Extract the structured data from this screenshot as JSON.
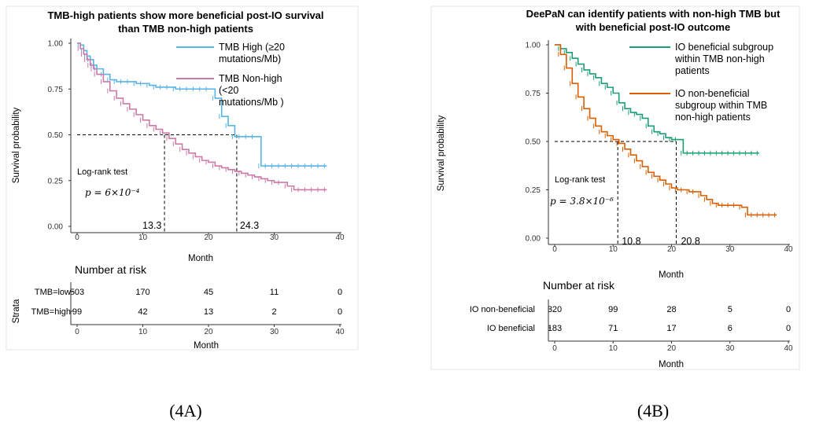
{
  "chart_data": [
    {
      "type": "line",
      "subtype": "kaplan-meier",
      "title_line1": "TMB-high patients show more beneficial post-IO  survival",
      "title_line2": "than TMB non-high patients",
      "xlabel": "Month",
      "ylabel": "Survival probability",
      "xlim": [
        0,
        40
      ],
      "ylim": [
        0,
        1
      ],
      "xticks": [
        "0",
        "10",
        "20",
        "30",
        "40"
      ],
      "yticks": [
        "0.00",
        "0.25",
        "0.50",
        "0.75",
        "1.00"
      ],
      "legend_position": "top-right",
      "series": [
        {
          "name": "TMB High (≥20 mutations/Mb)",
          "legend_lines": [
            "TMB High (≥20",
            "mutations/Mb)"
          ],
          "color": "#56b4e9",
          "x": [
            0,
            0.5,
            1,
            1.5,
            2,
            2.5,
            3,
            4,
            5,
            6,
            7,
            8,
            9,
            10,
            11,
            12,
            13,
            14,
            15,
            16,
            17,
            18,
            19,
            20,
            21,
            22,
            23,
            24,
            25,
            26,
            27,
            28,
            29,
            30,
            31,
            32,
            33,
            34,
            35,
            36,
            37,
            38
          ],
          "y": [
            1.0,
            0.99,
            0.96,
            0.93,
            0.91,
            0.88,
            0.86,
            0.83,
            0.8,
            0.79,
            0.79,
            0.79,
            0.78,
            0.78,
            0.77,
            0.76,
            0.76,
            0.76,
            0.75,
            0.75,
            0.75,
            0.75,
            0.75,
            0.75,
            0.7,
            0.6,
            0.55,
            0.49,
            0.49,
            0.49,
            0.49,
            0.33,
            0.33,
            0.33,
            0.33,
            0.33,
            0.33,
            0.33,
            0.33,
            0.33,
            0.33,
            0.33
          ]
        },
        {
          "name": "TMB Non-high (<20 mutations/Mb )",
          "legend_lines": [
            "TMB Non-high",
            "(<20",
            "mutations/Mb )"
          ],
          "color": "#cc79a7",
          "x": [
            0,
            0.5,
            1,
            1.5,
            2,
            2.5,
            3,
            4,
            5,
            6,
            7,
            8,
            9,
            10,
            11,
            12,
            13,
            14,
            15,
            16,
            17,
            18,
            19,
            20,
            21,
            22,
            23,
            24,
            25,
            26,
            27,
            28,
            29,
            30,
            31,
            32,
            33,
            34,
            35,
            36,
            37,
            38
          ],
          "y": [
            1.0,
            0.97,
            0.94,
            0.91,
            0.88,
            0.86,
            0.83,
            0.79,
            0.74,
            0.7,
            0.67,
            0.64,
            0.61,
            0.58,
            0.55,
            0.53,
            0.51,
            0.48,
            0.45,
            0.42,
            0.4,
            0.38,
            0.36,
            0.35,
            0.33,
            0.32,
            0.31,
            0.3,
            0.29,
            0.28,
            0.27,
            0.26,
            0.25,
            0.24,
            0.24,
            0.22,
            0.2,
            0.2,
            0.2,
            0.2,
            0.2,
            0.2
          ]
        }
      ],
      "medians": [
        {
          "label": "13.3",
          "x": 13.3
        },
        {
          "label": "24.3",
          "x": 24.3
        }
      ],
      "test_label": "Log-rank test",
      "p_value_text": "p = 6×10⁻⁴",
      "risk_table": {
        "title": "Number at risk",
        "strata_label": "Strata",
        "xlabel": "Month",
        "times": [
          "0",
          "10",
          "20",
          "30",
          "40"
        ],
        "rows": [
          {
            "label": "TMB=low",
            "color": "#cc79a7",
            "counts": [
              "503",
              "170",
              "45",
              "11",
              "0"
            ]
          },
          {
            "label": "TMB=high",
            "color": "#56b4e9",
            "counts": [
              "99",
              "42",
              "13",
              "2",
              "0"
            ]
          }
        ]
      },
      "caption": "(4A)"
    },
    {
      "type": "line",
      "subtype": "kaplan-meier",
      "title_line1": "DeePaN can identify patients with non-high TMB but",
      "title_line2": "with beneficial post-IO outcome",
      "xlabel": "Month",
      "ylabel": "Survival probability",
      "xlim": [
        0,
        40
      ],
      "ylim": [
        0,
        1
      ],
      "xticks": [
        "0",
        "10",
        "20",
        "30",
        "40"
      ],
      "yticks": [
        "0.00",
        "0.25",
        "0.50",
        "0.75",
        "1.00"
      ],
      "legend_position": "top-right",
      "series": [
        {
          "name": "IO beneficial subgroup within TMB non-high patients",
          "legend_lines": [
            "IO beneficial subgroup",
            "within TMB non-high",
            "patients"
          ],
          "color": "#1b9e77",
          "x": [
            0,
            1,
            2,
            3,
            4,
            5,
            6,
            7,
            8,
            9,
            10,
            11,
            12,
            13,
            14,
            15,
            16,
            17,
            18,
            19,
            20,
            21,
            22,
            23,
            24,
            25,
            26,
            27,
            28,
            29,
            30,
            31,
            32,
            33,
            34,
            35
          ],
          "y": [
            1.0,
            0.98,
            0.96,
            0.93,
            0.9,
            0.87,
            0.85,
            0.83,
            0.8,
            0.78,
            0.75,
            0.7,
            0.67,
            0.65,
            0.64,
            0.62,
            0.58,
            0.55,
            0.54,
            0.52,
            0.51,
            0.51,
            0.44,
            0.44,
            0.44,
            0.44,
            0.44,
            0.44,
            0.44,
            0.44,
            0.44,
            0.44,
            0.44,
            0.44,
            0.44,
            0.44
          ]
        },
        {
          "name": "IO non-beneficial subgroup within TMB non-high patients",
          "legend_lines": [
            "IO non-beneficial",
            "subgroup within TMB",
            "non-high patients"
          ],
          "color": "#d95f02",
          "x": [
            0,
            1,
            2,
            3,
            4,
            5,
            6,
            7,
            8,
            9,
            10,
            11,
            12,
            13,
            14,
            15,
            16,
            17,
            18,
            19,
            20,
            21,
            22,
            23,
            24,
            25,
            26,
            27,
            28,
            29,
            30,
            31,
            32,
            33,
            34,
            35,
            36,
            37,
            38
          ],
          "y": [
            1.0,
            0.95,
            0.88,
            0.8,
            0.73,
            0.67,
            0.62,
            0.58,
            0.55,
            0.53,
            0.51,
            0.49,
            0.46,
            0.43,
            0.4,
            0.37,
            0.34,
            0.32,
            0.3,
            0.28,
            0.26,
            0.25,
            0.25,
            0.24,
            0.24,
            0.22,
            0.2,
            0.18,
            0.17,
            0.17,
            0.17,
            0.17,
            0.16,
            0.12,
            0.12,
            0.12,
            0.12,
            0.12,
            0.12
          ]
        }
      ],
      "medians": [
        {
          "label": "10.8",
          "x": 10.8
        },
        {
          "label": "20.8",
          "x": 20.8
        }
      ],
      "test_label": "Log-rank test",
      "p_value_text": "p = 3.8×10⁻⁶",
      "risk_table": {
        "title": "Number at risk",
        "strata_label": "",
        "xlabel": "Month",
        "times": [
          "0",
          "10",
          "20",
          "30",
          "40"
        ],
        "rows": [
          {
            "label": "IO non-beneficial",
            "color": "#d95f02",
            "counts": [
              "320",
              "99",
              "28",
              "5",
              "0"
            ]
          },
          {
            "label": "IO beneficial",
            "color": "#1b9e77",
            "counts": [
              "183",
              "71",
              "17",
              "6",
              "0"
            ]
          }
        ]
      },
      "caption": "(4B)"
    }
  ]
}
